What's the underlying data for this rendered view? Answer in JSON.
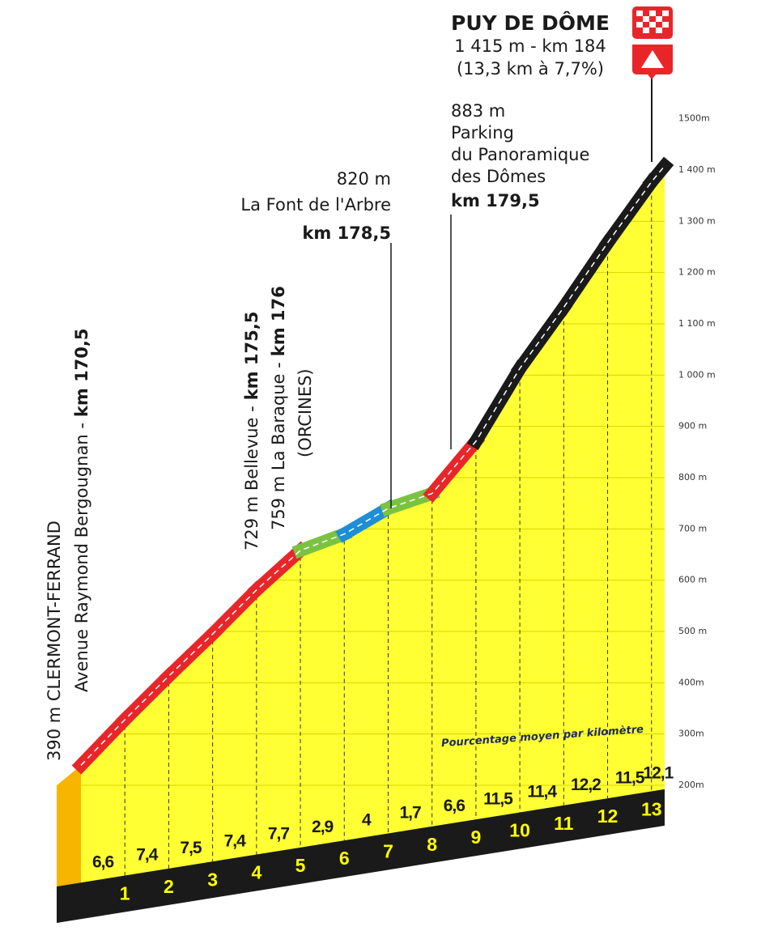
{
  "chart_data": {
    "type": "area",
    "title": "PUY DE DÔME",
    "subtitle": [
      "1 415 m - km 184",
      "(13,3 km à 7,7%)"
    ],
    "x": [
      0,
      1,
      2,
      3,
      4,
      5,
      6,
      7,
      8,
      9,
      10,
      11,
      12,
      13,
      13.3
    ],
    "values": [
      239,
      328,
      413,
      495,
      581,
      658,
      690,
      740,
      769,
      871,
      1013,
      1132,
      1258,
      1377,
      1408
    ],
    "color": "#ffff33",
    "xlim": [
      0,
      13.3
    ],
    "xticks": [
      1,
      2,
      3,
      4,
      5,
      6,
      7,
      8,
      9,
      10,
      11,
      12,
      13
    ],
    "ylim": [
      200,
      1500
    ],
    "yticks": [
      {
        "value": 200,
        "label": "200m"
      },
      {
        "value": 300,
        "label": "300m"
      },
      {
        "value": 400,
        "label": "400m"
      },
      {
        "value": 500,
        "label": "500 m"
      },
      {
        "value": 600,
        "label": "600 m"
      },
      {
        "value": 700,
        "label": "700 m"
      },
      {
        "value": 800,
        "label": "800 m"
      },
      {
        "value": 900,
        "label": "900 m"
      },
      {
        "value": 1000,
        "label": "1 000 m"
      },
      {
        "value": 1100,
        "label": "1 100 m"
      },
      {
        "value": 1200,
        "label": "1 200 m"
      },
      {
        "value": 1300,
        "label": "1 300 m"
      },
      {
        "value": 1400,
        "label": "1 400 m"
      },
      {
        "value": 1500,
        "label": "1500m"
      }
    ],
    "grid": true,
    "segments": {
      "label": "Pourcentage moyen par kilomètre",
      "values": [
        6.6,
        7.4,
        7.5,
        7.4,
        7.7,
        2.9,
        4,
        1.7,
        6.6,
        11.5,
        11.4,
        12.2,
        11.5,
        12.1
      ],
      "value_labels": [
        "6,6",
        "7,4",
        "7,5",
        "7,4",
        "7,7",
        "2,9",
        "4",
        "1,7",
        "6,6",
        "11,5",
        "11,4",
        "12,2",
        "11,5",
        "12,1"
      ],
      "colors": [
        "#e8262a",
        "#e8262a",
        "#e8262a",
        "#e8262a",
        "#e8262a",
        "#7cc242",
        "#1e8fd6",
        "#7cc242",
        "#e8262a",
        "#1a1a1a",
        "#1a1a1a",
        "#1a1a1a",
        "#1a1a1a",
        "#1a1a1a"
      ]
    },
    "annotations": [
      {
        "text": "390 m CLERMONT-FERRAND"
      },
      {
        "text": "Avenue Raymond Bergougnan -",
        "km": "km 170,5"
      },
      {
        "text": "729 m Bellevue -",
        "km": "km 175,5"
      },
      {
        "text": "759 m La Baraque -",
        "km": "km 176"
      },
      {
        "text": "(ORCINES)"
      },
      {
        "lines": [
          "820 m",
          "La Font de l'Arbre"
        ],
        "km": "km 178,5"
      },
      {
        "lines": [
          "883 m",
          "Parking",
          "du Panoramique",
          "des Dômes"
        ],
        "km": "km 179,5"
      }
    ]
  }
}
